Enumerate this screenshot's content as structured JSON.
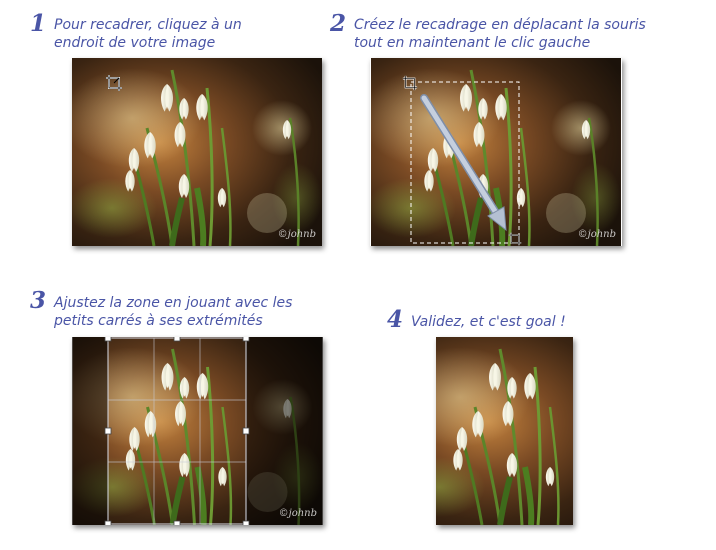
{
  "steps": [
    {
      "number": "1",
      "text": "Pour recadrer, cliquez à un\nendroit de votre image"
    },
    {
      "number": "2",
      "text": "Créez le recadrage en déplacant la souris\ntout en maintenant le clic gauche"
    },
    {
      "number": "3",
      "text": "Ajustez la zone en jouant avec les\npetits carrés à ses extrémités"
    },
    {
      "number": "4",
      "text": "Validez, et c'est goal !"
    }
  ],
  "watermark": "©johnb",
  "icons": {
    "crop_cursor": "crop-icon",
    "drag_arrow": "arrow-icon"
  },
  "colors": {
    "step_text": "#4a55a6",
    "arrow": "#a8b4c8"
  }
}
